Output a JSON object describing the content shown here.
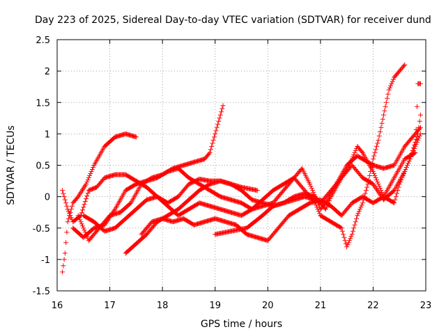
{
  "chart_data": {
    "type": "scatter",
    "title": "Day 223 of 2025, Sidereal Day-to-day VTEC variation (SDTVAR) for receiver dund",
    "xlabel": "GPS time / hours",
    "ylabel": "SDTVAR / TECUs",
    "xlim": [
      16,
      23
    ],
    "ylim": [
      -1.5,
      2.5
    ],
    "xticks": [
      16,
      17,
      18,
      19,
      20,
      21,
      22,
      23
    ],
    "yticks": [
      -1.5,
      -1,
      -0.5,
      0,
      0.5,
      1,
      1.5,
      2,
      2.5
    ],
    "xtick_labels": [
      "16",
      "17",
      "18",
      "19",
      "20",
      "21",
      "22",
      "23"
    ],
    "ytick_labels": [
      "-1.5",
      "-1",
      "-0.5",
      "0",
      "0.5",
      "1",
      "1.5",
      "2",
      "2.5"
    ],
    "grid": true,
    "marker": "+",
    "marker_color": "#ff0000",
    "series": [
      {
        "name": "trace-1",
        "points": [
          [
            16.1,
            -1.2
          ],
          [
            16.15,
            -0.9
          ],
          [
            16.2,
            -0.4
          ],
          [
            16.3,
            -0.1
          ],
          [
            16.4,
            0.0
          ],
          [
            16.55,
            0.2
          ],
          [
            16.7,
            0.5
          ],
          [
            16.9,
            0.8
          ],
          [
            17.1,
            0.95
          ],
          [
            17.3,
            1.0
          ],
          [
            17.5,
            0.95
          ]
        ]
      },
      {
        "name": "trace-2",
        "points": [
          [
            16.1,
            0.1
          ],
          [
            16.2,
            -0.2
          ],
          [
            16.3,
            -0.4
          ],
          [
            16.45,
            -0.3
          ],
          [
            16.6,
            0.1
          ],
          [
            16.75,
            0.15
          ],
          [
            16.9,
            0.3
          ],
          [
            17.1,
            0.35
          ],
          [
            17.3,
            0.35
          ],
          [
            17.5,
            0.25
          ],
          [
            17.7,
            0.15
          ],
          [
            17.9,
            0.0
          ],
          [
            18.1,
            -0.1
          ],
          [
            18.3,
            0.0
          ],
          [
            18.5,
            0.2
          ],
          [
            18.7,
            0.28
          ],
          [
            18.9,
            0.25
          ],
          [
            19.1,
            0.25
          ],
          [
            19.3,
            0.2
          ],
          [
            19.5,
            0.15
          ],
          [
            19.8,
            0.1
          ]
        ]
      },
      {
        "name": "trace-3",
        "points": [
          [
            16.3,
            -0.5
          ],
          [
            16.5,
            -0.65
          ],
          [
            16.7,
            -0.5
          ],
          [
            16.9,
            -0.45
          ],
          [
            17.1,
            -0.2
          ],
          [
            17.3,
            0.1
          ],
          [
            17.5,
            0.2
          ],
          [
            17.7,
            0.25
          ],
          [
            17.9,
            0.3
          ],
          [
            18.1,
            0.4
          ],
          [
            18.3,
            0.45
          ],
          [
            18.5,
            0.3
          ],
          [
            18.7,
            0.2
          ],
          [
            18.9,
            0.1
          ],
          [
            19.1,
            0.0
          ],
          [
            19.3,
            -0.05
          ],
          [
            19.5,
            -0.1
          ],
          [
            19.7,
            -0.2
          ],
          [
            19.9,
            -0.15
          ],
          [
            20.1,
            -0.1
          ],
          [
            20.3,
            0.1
          ],
          [
            20.5,
            0.3
          ],
          [
            20.65,
            0.45
          ],
          [
            20.8,
            0.2
          ],
          [
            20.9,
            0.0
          ],
          [
            21.0,
            -0.2
          ],
          [
            21.1,
            -0.1
          ],
          [
            21.3,
            0.2
          ],
          [
            21.5,
            0.5
          ],
          [
            21.7,
            0.65
          ],
          [
            21.8,
            0.6
          ],
          [
            22.0,
            0.5
          ],
          [
            22.2,
            0.45
          ],
          [
            22.4,
            0.5
          ],
          [
            22.6,
            0.8
          ],
          [
            22.8,
            1.0
          ],
          [
            22.9,
            1.1
          ]
        ]
      },
      {
        "name": "trace-4",
        "points": [
          [
            16.4,
            -0.3
          ],
          [
            16.6,
            -0.7
          ],
          [
            16.8,
            -0.5
          ],
          [
            17.0,
            -0.3
          ],
          [
            17.2,
            -0.25
          ],
          [
            17.4,
            -0.1
          ],
          [
            17.6,
            0.2
          ],
          [
            17.8,
            0.3
          ],
          [
            18.0,
            0.35
          ],
          [
            18.2,
            0.45
          ],
          [
            18.4,
            0.5
          ],
          [
            18.6,
            0.55
          ],
          [
            18.8,
            0.6
          ],
          [
            18.9,
            0.7
          ],
          [
            19.0,
            1.0
          ],
          [
            19.1,
            1.3
          ],
          [
            19.15,
            1.45
          ]
        ]
      },
      {
        "name": "trace-5",
        "points": [
          [
            16.5,
            -0.3
          ],
          [
            16.7,
            -0.4
          ],
          [
            16.9,
            -0.55
          ],
          [
            17.1,
            -0.5
          ],
          [
            17.3,
            -0.35
          ],
          [
            17.5,
            -0.2
          ],
          [
            17.7,
            -0.05
          ],
          [
            17.9,
            0.0
          ],
          [
            18.1,
            -0.15
          ],
          [
            18.3,
            -0.3
          ],
          [
            18.5,
            -0.2
          ],
          [
            18.7,
            -0.1
          ],
          [
            18.9,
            -0.15
          ],
          [
            19.1,
            -0.2
          ],
          [
            19.3,
            -0.25
          ],
          [
            19.5,
            -0.3
          ],
          [
            19.7,
            -0.2
          ],
          [
            19.9,
            -0.05
          ],
          [
            20.1,
            0.1
          ],
          [
            20.3,
            0.2
          ],
          [
            20.5,
            0.3
          ],
          [
            20.7,
            0.1
          ],
          [
            20.9,
            -0.1
          ],
          [
            21.0,
            -0.3
          ],
          [
            21.2,
            -0.4
          ],
          [
            21.4,
            -0.5
          ],
          [
            21.5,
            -0.8
          ],
          [
            21.6,
            -0.6
          ],
          [
            21.7,
            -0.3
          ],
          [
            21.8,
            -0.1
          ],
          [
            21.9,
            0.2
          ],
          [
            22.0,
            0.6
          ],
          [
            22.1,
            0.9
          ],
          [
            22.2,
            1.3
          ],
          [
            22.3,
            1.7
          ],
          [
            22.4,
            1.9
          ],
          [
            22.5,
            2.0
          ],
          [
            22.6,
            2.1
          ]
        ]
      },
      {
        "name": "trace-6",
        "points": [
          [
            17.3,
            -0.9
          ],
          [
            17.5,
            -0.75
          ],
          [
            17.7,
            -0.6
          ],
          [
            17.9,
            -0.4
          ],
          [
            18.1,
            -0.3
          ],
          [
            18.3,
            -0.2
          ],
          [
            18.5,
            -0.05
          ],
          [
            18.7,
            0.1
          ],
          [
            18.9,
            0.2
          ],
          [
            19.1,
            0.25
          ],
          [
            19.3,
            0.2
          ],
          [
            19.5,
            0.1
          ],
          [
            19.7,
            -0.05
          ],
          [
            19.9,
            -0.1
          ],
          [
            20.1,
            -0.15
          ],
          [
            20.3,
            -0.1
          ],
          [
            20.5,
            -0.05
          ],
          [
            20.7,
            0.0
          ],
          [
            20.9,
            -0.05
          ],
          [
            21.0,
            -0.1
          ],
          [
            21.1,
            -0.2
          ],
          [
            21.2,
            0.0
          ],
          [
            21.4,
            0.3
          ],
          [
            21.6,
            0.5
          ],
          [
            21.8,
            0.3
          ],
          [
            22.0,
            0.2
          ],
          [
            22.2,
            -0.05
          ],
          [
            22.4,
            0.1
          ],
          [
            22.6,
            0.4
          ],
          [
            22.8,
            0.8
          ],
          [
            22.9,
            1.0
          ]
        ]
      },
      {
        "name": "trace-7",
        "points": [
          [
            19.0,
            -0.6
          ],
          [
            19.3,
            -0.55
          ],
          [
            19.6,
            -0.5
          ],
          [
            19.9,
            -0.3
          ],
          [
            20.1,
            -0.15
          ],
          [
            20.3,
            -0.1
          ],
          [
            20.5,
            0.0
          ],
          [
            20.7,
            0.05
          ],
          [
            20.9,
            0.0
          ],
          [
            21.0,
            -0.1
          ],
          [
            21.2,
            0.1
          ],
          [
            21.4,
            0.3
          ],
          [
            21.6,
            0.6
          ],
          [
            21.7,
            0.8
          ],
          [
            21.8,
            0.7
          ],
          [
            22.0,
            0.4
          ],
          [
            22.2,
            0.0
          ],
          [
            22.4,
            -0.1
          ],
          [
            22.5,
            0.2
          ],
          [
            22.7,
            0.6
          ],
          [
            22.85,
            1.0
          ],
          [
            22.9,
            1.3
          ]
        ]
      },
      {
        "name": "trace-8",
        "points": [
          [
            17.6,
            -0.6
          ],
          [
            17.8,
            -0.4
          ],
          [
            18.0,
            -0.35
          ],
          [
            18.2,
            -0.4
          ],
          [
            18.4,
            -0.35
          ],
          [
            18.6,
            -0.45
          ],
          [
            18.8,
            -0.4
          ],
          [
            19.0,
            -0.35
          ],
          [
            19.2,
            -0.4
          ],
          [
            19.4,
            -0.45
          ],
          [
            19.6,
            -0.6
          ],
          [
            19.8,
            -0.65
          ],
          [
            20.0,
            -0.7
          ],
          [
            20.2,
            -0.5
          ],
          [
            20.4,
            -0.3
          ],
          [
            20.6,
            -0.2
          ],
          [
            20.8,
            -0.1
          ],
          [
            21.0,
            -0.05
          ],
          [
            21.2,
            -0.15
          ],
          [
            21.4,
            -0.3
          ],
          [
            21.6,
            -0.1
          ],
          [
            21.8,
            0.0
          ],
          [
            22.0,
            -0.1
          ],
          [
            22.2,
            0.0
          ],
          [
            22.4,
            0.3
          ],
          [
            22.6,
            0.6
          ],
          [
            22.8,
            0.7
          ],
          [
            22.85,
            1.8
          ],
          [
            22.9,
            1.8
          ]
        ]
      }
    ]
  }
}
